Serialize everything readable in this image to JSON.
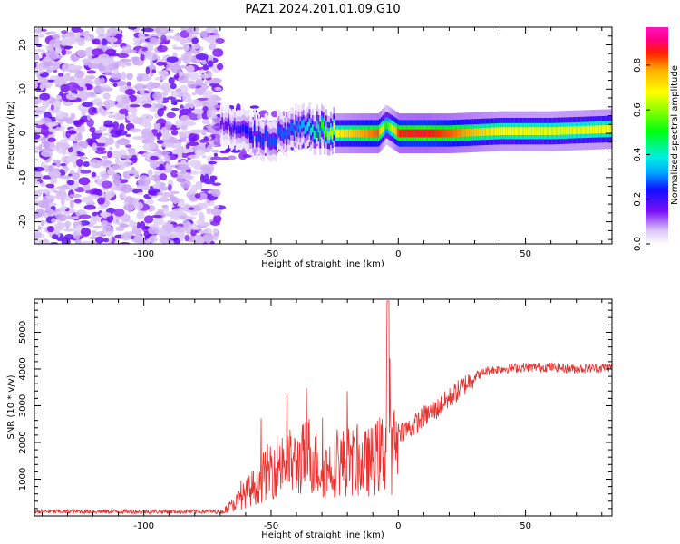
{
  "title": "PAZ1.2024.201.01.09.G10",
  "colors": {
    "line": "#e8322d",
    "axis": "#000000"
  },
  "chart_data": [
    {
      "type": "heatmap",
      "xlabel": "Height of straight line (km)",
      "ylabel": "Frequency (Hz)",
      "xlim": [
        -143,
        84
      ],
      "ylim": [
        -25,
        24
      ],
      "x_ticks": [
        -100,
        -50,
        0,
        50
      ],
      "y_ticks": [
        -20,
        -10,
        0,
        10,
        20
      ],
      "colorbar": {
        "label": "Normalized spectral amplitude",
        "range": [
          0,
          0.97
        ],
        "ticks": [
          0.0,
          0.2,
          0.4,
          0.6,
          0.8
        ],
        "colormap": "gist_ncar-like (purple-blue-cyan-green-yellow-red-magenta)"
      },
      "ridge": [
        {
          "x": -70,
          "freq": 2,
          "amp": 0.15
        },
        {
          "x": -60,
          "freq": 0,
          "amp": 0.25
        },
        {
          "x": -50,
          "freq": -1,
          "amp": 0.28
        },
        {
          "x": -40,
          "freq": 1,
          "amp": 0.3
        },
        {
          "x": -33,
          "freq": 1,
          "amp": 0.45
        },
        {
          "x": -25,
          "freq": 0,
          "amp": 0.7
        },
        {
          "x": -15,
          "freq": 0,
          "amp": 0.8
        },
        {
          "x": -8,
          "freq": 0,
          "amp": 0.85
        },
        {
          "x": -5,
          "freq": 2,
          "amp": 0.5
        },
        {
          "x": 0,
          "freq": 0,
          "amp": 0.88
        },
        {
          "x": 10,
          "freq": 0,
          "amp": 0.9
        },
        {
          "x": 20,
          "freq": 0,
          "amp": 0.85
        },
        {
          "x": 40,
          "freq": 0.5,
          "amp": 0.7
        },
        {
          "x": 60,
          "freq": 0.5,
          "amp": 0.68
        },
        {
          "x": 84,
          "freq": 1,
          "amp": 0.7
        }
      ]
    },
    {
      "type": "line",
      "xlabel": "Height of straight line (km)",
      "ylabel": "SNR (10 * v/v)",
      "xlim": [
        -143,
        84
      ],
      "ylim": [
        0,
        5900
      ],
      "x_ticks": [
        -100,
        -50,
        0,
        50
      ],
      "y_ticks": [
        1000,
        2000,
        3000,
        4000,
        5000
      ],
      "series": [
        {
          "x": [
            -143,
            -120,
            -100,
            -80,
            -70,
            -65,
            -60,
            -55,
            -50,
            -45,
            -40,
            -35,
            -30,
            -25,
            -20,
            -15,
            -10,
            -5,
            -4,
            -3,
            0,
            5,
            10,
            15,
            20,
            25,
            30,
            35,
            40,
            50,
            60,
            70,
            84
          ],
          "y": [
            100,
            120,
            110,
            100,
            100,
            300,
            600,
            900,
            1300,
            1500,
            1400,
            1700,
            1200,
            1400,
            1500,
            1400,
            1500,
            1800,
            5600,
            1500,
            2300,
            2400,
            2700,
            2900,
            3200,
            3500,
            3800,
            3950,
            4000,
            4050,
            4050,
            4000,
            4050
          ]
        }
      ]
    }
  ]
}
